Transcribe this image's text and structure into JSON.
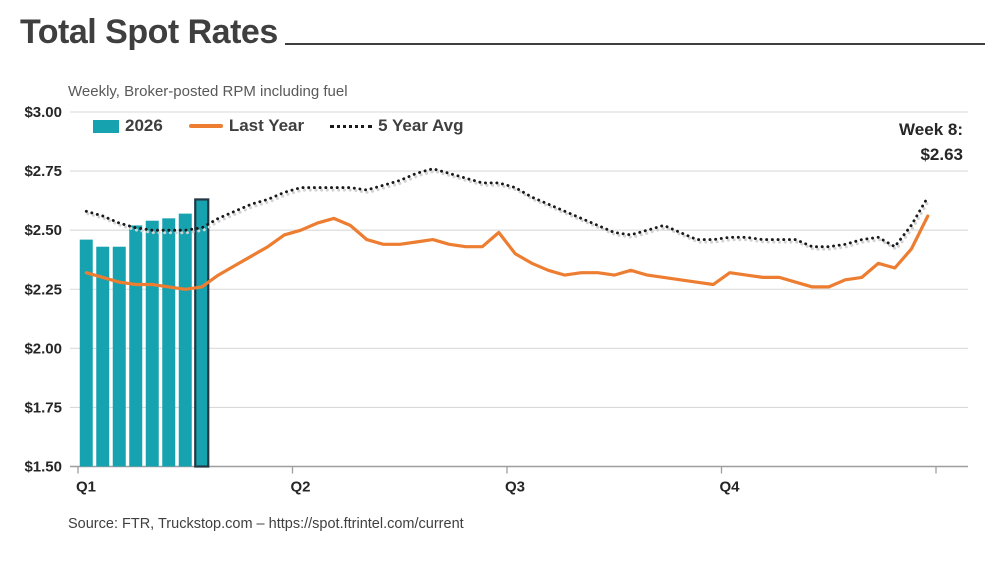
{
  "page": {
    "title": "Total Spot Rates",
    "subtitle": "Weekly, Broker-posted RPM including fuel",
    "source": "Source: FTR, Truckstop.com – https://spot.ftrintel.com/current"
  },
  "legend": {
    "items": [
      {
        "label": "2026",
        "swatch": "bar-swatch",
        "color": "#17A2AF"
      },
      {
        "label": "Last Year",
        "swatch": "line-swatch",
        "color": "#ED7D31"
      },
      {
        "label": "5 Year Avg",
        "swatch": "dotted-swatch",
        "color": "#1A1A1A"
      }
    ]
  },
  "annotation": {
    "line1": "Week 8:",
    "line2": "$2.63"
  },
  "colors": {
    "bar": "#17A2AF",
    "bar_highlight_outline": "#233744",
    "last_year_line": "#ED7D31",
    "five_year_dotted": "#1A1A1A",
    "dotted_shadow": "#D2D2D2",
    "gridline": "#D9D9D9",
    "axis": "#9E9E9E",
    "text": "#262626"
  },
  "chart_data": {
    "type": "bar",
    "title": "Total Spot Rates",
    "subtitle": "Weekly, Broker-posted RPM including fuel",
    "x_unit": "week of year",
    "x_range": [
      1,
      52
    ],
    "ylim": [
      1.5,
      3.0
    ],
    "y_tick_values": [
      3.0,
      2.75,
      2.5,
      2.25,
      2.0,
      1.75,
      1.5
    ],
    "y_tick_prefix": "$",
    "x_ticks": [
      {
        "pos": 0,
        "label": "Q1"
      },
      {
        "pos": 13,
        "label": "Q2"
      },
      {
        "pos": 26,
        "label": "Q3"
      },
      {
        "pos": 39,
        "label": "Q4"
      },
      {
        "pos": 52,
        "label": ""
      }
    ],
    "grid": "horizontal",
    "legend_position": "top-left-inside",
    "annotation": {
      "week": 8,
      "value": 2.63,
      "text": "Week 8: $2.63"
    },
    "series": [
      {
        "name": "2026",
        "type": "bar",
        "color": "#17A2AF",
        "weeks": [
          1,
          2,
          3,
          4,
          5,
          6,
          7,
          8
        ],
        "values": [
          2.46,
          2.43,
          2.43,
          2.52,
          2.54,
          2.55,
          2.57,
          2.63
        ],
        "highlight_last": true
      },
      {
        "name": "Last Year",
        "type": "line",
        "color": "#ED7D31",
        "values": [
          2.32,
          2.3,
          2.28,
          2.27,
          2.27,
          2.26,
          2.25,
          2.26,
          2.31,
          2.35,
          2.39,
          2.43,
          2.48,
          2.5,
          2.53,
          2.55,
          2.52,
          2.46,
          2.44,
          2.44,
          2.45,
          2.46,
          2.44,
          2.43,
          2.43,
          2.49,
          2.4,
          2.36,
          2.33,
          2.31,
          2.32,
          2.32,
          2.31,
          2.33,
          2.31,
          2.3,
          2.29,
          2.28,
          2.27,
          2.32,
          2.31,
          2.3,
          2.3,
          2.28,
          2.26,
          2.26,
          2.29,
          2.3,
          2.36,
          2.34,
          2.42,
          2.56
        ]
      },
      {
        "name": "5 Year Avg",
        "type": "dotted-line",
        "color": "#1A1A1A",
        "values": [
          2.58,
          2.56,
          2.53,
          2.51,
          2.5,
          2.5,
          2.5,
          2.51,
          2.55,
          2.58,
          2.61,
          2.63,
          2.66,
          2.68,
          2.68,
          2.68,
          2.68,
          2.67,
          2.69,
          2.71,
          2.74,
          2.76,
          2.74,
          2.72,
          2.7,
          2.7,
          2.68,
          2.64,
          2.61,
          2.58,
          2.55,
          2.52,
          2.49,
          2.48,
          2.5,
          2.52,
          2.49,
          2.46,
          2.46,
          2.47,
          2.47,
          2.46,
          2.46,
          2.46,
          2.43,
          2.43,
          2.44,
          2.46,
          2.47,
          2.43,
          2.52,
          2.64
        ]
      }
    ]
  }
}
